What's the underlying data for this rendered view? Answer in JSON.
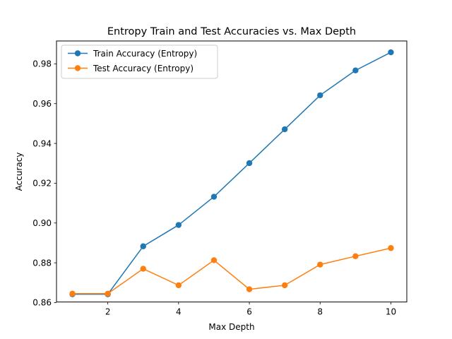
{
  "chart_data": {
    "type": "line",
    "title": "Entropy Train and Test Accuracies vs. Max Depth",
    "xlabel": "Max Depth",
    "ylabel": "Accuracy",
    "xlim": [
      0.55,
      10.45
    ],
    "ylim": [
      0.8603,
      0.9915
    ],
    "xticks": [
      2,
      4,
      6,
      8,
      10
    ],
    "xtick_labels": [
      "2",
      "4",
      "6",
      "8",
      "10"
    ],
    "yticks": [
      0.86,
      0.88,
      0.9,
      0.92,
      0.94,
      0.96,
      0.98
    ],
    "ytick_labels": [
      "0.86",
      "0.88",
      "0.90",
      "0.92",
      "0.94",
      "0.96",
      "0.98"
    ],
    "grid": false,
    "legend_position": "top-left",
    "x": [
      1,
      2,
      3,
      4,
      5,
      6,
      7,
      8,
      9,
      10
    ],
    "series": [
      {
        "name": "Train Accuracy (Entropy)",
        "color": "#1f77b4",
        "values": [
          0.8642,
          0.8642,
          0.8883,
          0.899,
          0.9132,
          0.9301,
          0.9471,
          0.9642,
          0.9767,
          0.9858
        ]
      },
      {
        "name": "Test Accuracy (Entropy)",
        "color": "#ff7f0e",
        "values": [
          0.8645,
          0.8645,
          0.877,
          0.8687,
          0.8813,
          0.8667,
          0.8687,
          0.8791,
          0.8833,
          0.8874
        ]
      }
    ]
  }
}
